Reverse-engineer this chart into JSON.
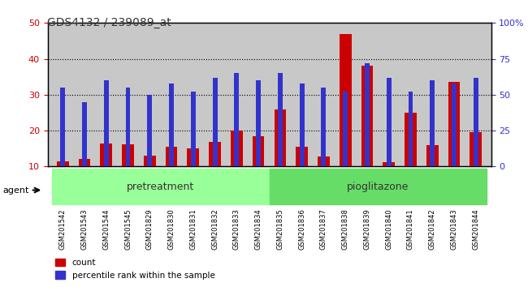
{
  "title": "GDS4132 / 239089_at",
  "categories": [
    "GSM201542",
    "GSM201543",
    "GSM201544",
    "GSM201545",
    "GSM201829",
    "GSM201830",
    "GSM201831",
    "GSM201832",
    "GSM201833",
    "GSM201834",
    "GSM201835",
    "GSM201836",
    "GSM201837",
    "GSM201838",
    "GSM201839",
    "GSM201840",
    "GSM201841",
    "GSM201842",
    "GSM201843",
    "GSM201844"
  ],
  "count_values": [
    11.5,
    12.2,
    16.5,
    16.2,
    13.0,
    15.5,
    15.0,
    16.8,
    20.0,
    18.5,
    26.0,
    15.5,
    12.7,
    47.0,
    38.0,
    11.2,
    25.0,
    16.0,
    33.5,
    19.5
  ],
  "percentile_values": [
    55,
    45,
    60,
    55,
    50,
    58,
    52,
    62,
    65,
    60,
    65,
    58,
    55,
    52,
    72,
    62,
    52,
    60,
    58,
    62
  ],
  "base_value": 10,
  "pretreatment_range": [
    0,
    9
  ],
  "pioglitazone_range": [
    10,
    19
  ],
  "pretreatment_label": "pretreatment",
  "pioglitazone_label": "pioglitazone",
  "agent_label": "agent",
  "legend_count": "count",
  "legend_percentile": "percentile rank within the sample",
  "ylim_left": [
    10,
    50
  ],
  "ylim_right": [
    0,
    100
  ],
  "yticks_left": [
    10,
    20,
    30,
    40,
    50
  ],
  "yticks_right": [
    0,
    25,
    50,
    75,
    100
  ],
  "bar_color_red": "#CC0000",
  "bar_color_blue": "#3333CC",
  "bg_color": "#C8C8C8",
  "pretreatment_color": "#99FF99",
  "pioglitazone_color": "#66DD66",
  "title_color": "#333333",
  "axis_label_color_left": "#CC0000",
  "axis_label_color_right": "#3333CC"
}
